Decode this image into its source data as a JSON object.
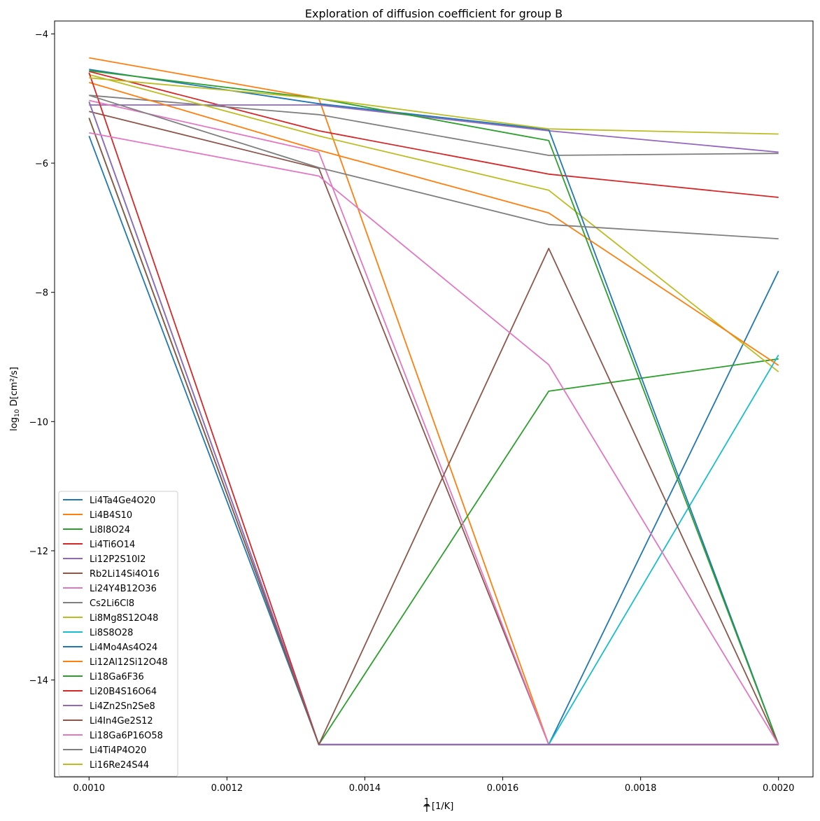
{
  "chart_data": {
    "type": "line",
    "title": "Exploration of diffusion coefficient for group B",
    "xlabel": "1/T [1/K]",
    "ylabel": "log10 D [cm²/s]",
    "x": [
      0.001,
      0.0013333,
      0.0016667,
      0.002
    ],
    "xlim": [
      0.00095,
      0.00205
    ],
    "ylim": [
      -15.5,
      -3.8
    ],
    "xticks": [
      0.001,
      0.0012,
      0.0014,
      0.0016,
      0.0018,
      0.002
    ],
    "xtick_labels": [
      "0.0010",
      "0.0012",
      "0.0014",
      "0.0016",
      "0.0018",
      "0.0020"
    ],
    "yticks": [
      -14,
      -12,
      -10,
      -8,
      -6,
      -4
    ],
    "ytick_labels": [
      "−14",
      "−12",
      "−10",
      "−8",
      "−6",
      "−4"
    ],
    "grid": false,
    "legend_position": "lower-left",
    "series": [
      {
        "name": "Li4Ta4Ge4O20",
        "color": "#1f77b4",
        "values": [
          -5.58,
          -15.0,
          -15.0,
          -7.67
        ]
      },
      {
        "name": "Li4B4S10",
        "color": "#ff7f0e",
        "values": [
          -4.37,
          -5.0,
          -15.0,
          -15.0
        ]
      },
      {
        "name": "Li8I8O24",
        "color": "#2ca02c",
        "values": [
          -5.3,
          -15.0,
          -9.53,
          -9.03
        ]
      },
      {
        "name": "Li4Ti6O14",
        "color": "#d62728",
        "values": [
          -4.58,
          -5.5,
          -6.17,
          -6.53
        ]
      },
      {
        "name": "Li12P2S10I2",
        "color": "#9467bd",
        "values": [
          -5.1,
          -5.1,
          -5.5,
          -5.83
        ]
      },
      {
        "name": "Rb2Li14Si4O16",
        "color": "#8c564b",
        "values": [
          -5.2,
          -6.08,
          -15.0,
          -15.0
        ]
      },
      {
        "name": "Li24Y4B12O36",
        "color": "#e377c2",
        "values": [
          -5.03,
          -5.83,
          -15.0,
          -15.0
        ]
      },
      {
        "name": "Cs2Li6Cl8",
        "color": "#7f7f7f",
        "values": [
          -4.95,
          -5.25,
          -5.88,
          -5.85
        ]
      },
      {
        "name": "Li8Mg8S12O48",
        "color": "#bcbd22",
        "values": [
          -4.63,
          -5.58,
          -6.42,
          -9.23
        ]
      },
      {
        "name": "Li8S8O28",
        "color": "#17becf",
        "values": [
          -5.05,
          -15.0,
          -15.0,
          -8.97
        ]
      },
      {
        "name": "Li4Mo4As4O24",
        "color": "#1f77b4",
        "values": [
          -4.55,
          -5.08,
          -5.48,
          -15.0
        ]
      },
      {
        "name": "Li12Al12Si12O48",
        "color": "#ff7f0e",
        "values": [
          -4.75,
          -5.8,
          -6.77,
          -9.13
        ]
      },
      {
        "name": "Li18Ga6F36",
        "color": "#2ca02c",
        "values": [
          -4.57,
          -5.0,
          -5.65,
          -15.0
        ]
      },
      {
        "name": "Li20B4S16O64",
        "color": "#d62728",
        "values": [
          -4.6,
          -15.0,
          -15.0,
          -15.0
        ]
      },
      {
        "name": "Li4Zn2Sn2Se8",
        "color": "#9467bd",
        "values": [
          -5.05,
          -15.0,
          -15.0,
          -15.0
        ]
      },
      {
        "name": "Li4In4Ge2S12",
        "color": "#8c564b",
        "values": [
          -5.3,
          -15.0,
          -7.32,
          -15.0
        ]
      },
      {
        "name": "Li18Ga6P16O58",
        "color": "#e377c2",
        "values": [
          -5.53,
          -6.2,
          -9.12,
          -15.0
        ]
      },
      {
        "name": "Li4Ti4P4O20",
        "color": "#7f7f7f",
        "values": [
          -4.95,
          -6.07,
          -6.95,
          -7.17
        ]
      },
      {
        "name": "Li16Re24S44",
        "color": "#bcbd22",
        "values": [
          -4.68,
          -5.0,
          -5.47,
          -5.55
        ]
      }
    ]
  }
}
